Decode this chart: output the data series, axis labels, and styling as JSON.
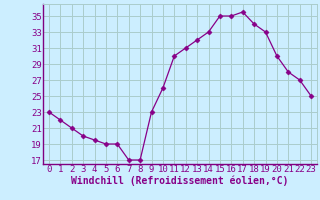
{
  "x": [
    0,
    1,
    2,
    3,
    4,
    5,
    6,
    7,
    8,
    9,
    10,
    11,
    12,
    13,
    14,
    15,
    16,
    17,
    18,
    19,
    20,
    21,
    22,
    23
  ],
  "y": [
    23,
    22,
    21,
    20,
    19.5,
    19,
    19,
    17,
    17,
    23,
    26,
    30,
    31,
    32,
    33,
    35,
    35,
    35.5,
    34,
    33,
    30,
    28,
    27,
    25
  ],
  "line_color": "#880088",
  "marker": "D",
  "marker_size": 2.5,
  "bg_color": "#cceeff",
  "grid_color": "#aacccc",
  "xlabel": "Windchill (Refroidissement éolien,°C)",
  "xlabel_color": "#880088",
  "xlabel_fontsize": 7,
  "tick_color": "#880088",
  "tick_fontsize": 6.5,
  "ylim": [
    16.5,
    36.5
  ],
  "yticks": [
    17,
    19,
    21,
    23,
    25,
    27,
    29,
    31,
    33,
    35
  ],
  "xlim": [
    -0.5,
    23.5
  ],
  "xticks": [
    0,
    1,
    2,
    3,
    4,
    5,
    6,
    7,
    8,
    9,
    10,
    11,
    12,
    13,
    14,
    15,
    16,
    17,
    18,
    19,
    20,
    21,
    22,
    23
  ]
}
